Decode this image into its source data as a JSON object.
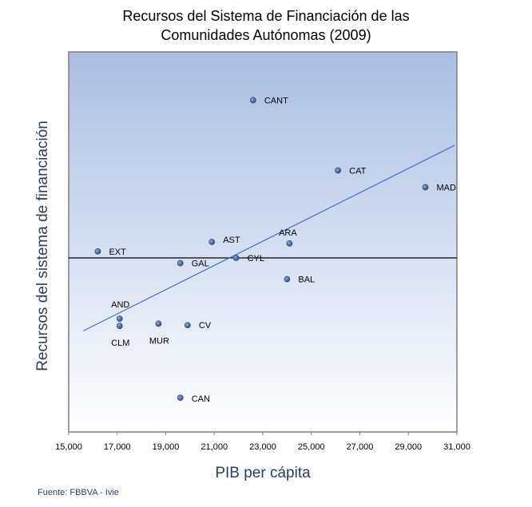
{
  "chart_data": {
    "type": "scatter",
    "title_lines": [
      "Recursos del Sistema de Financiación de las",
      "Comunidades Autónomas (2009)"
    ],
    "xlabel": "PIB per cápita",
    "ylabel": "Recursos del sistema de financiación",
    "xlim": [
      15000,
      31000
    ],
    "ylim": [
      0,
      100
    ],
    "x_ticks": [
      15000,
      17000,
      19000,
      21000,
      23000,
      25000,
      27000,
      29000,
      31000
    ],
    "x_tick_labels": [
      "15,000",
      "17,000",
      "19,000",
      "21,000",
      "23,000",
      "25,000",
      "27,000",
      "29,000",
      "31,000"
    ],
    "y_ticks_shown": false,
    "reference_line_y": 45.8,
    "trendline": {
      "x": [
        15600,
        30900
      ],
      "y": [
        26.6,
        75.4
      ]
    },
    "points": [
      {
        "label": "CANT",
        "x": 22600,
        "y": 87.3
      },
      {
        "label": "CAT",
        "x": 26100,
        "y": 68.8
      },
      {
        "label": "MAD",
        "x": 29700,
        "y": 64.4
      },
      {
        "label": "ARA",
        "x": 24100,
        "y": 49.6
      },
      {
        "label": "AST",
        "x": 20900,
        "y": 50.0
      },
      {
        "label": "EXT",
        "x": 16200,
        "y": 47.5
      },
      {
        "label": "CYL",
        "x": 21900,
        "y": 45.8
      },
      {
        "label": "GAL",
        "x": 19600,
        "y": 44.4
      },
      {
        "label": "BAL",
        "x": 24000,
        "y": 40.2
      },
      {
        "label": "AND",
        "x": 17100,
        "y": 29.8
      },
      {
        "label": "CLM",
        "x": 17100,
        "y": 27.9
      },
      {
        "label": "MUR",
        "x": 18700,
        "y": 28.5
      },
      {
        "label": "CV",
        "x": 19900,
        "y": 28.1
      },
      {
        "label": "CAN",
        "x": 19600,
        "y": 9.0
      }
    ]
  },
  "source": "Fuente: FBBVA - Ivie",
  "colors": {
    "plot_bg_top": "#a9bde3",
    "plot_bg_bottom": "#ffffff",
    "marker": "#2f4a78",
    "trendline": "#4472c4",
    "reference_line": "#000000",
    "axis_text": "#2c3e60"
  }
}
